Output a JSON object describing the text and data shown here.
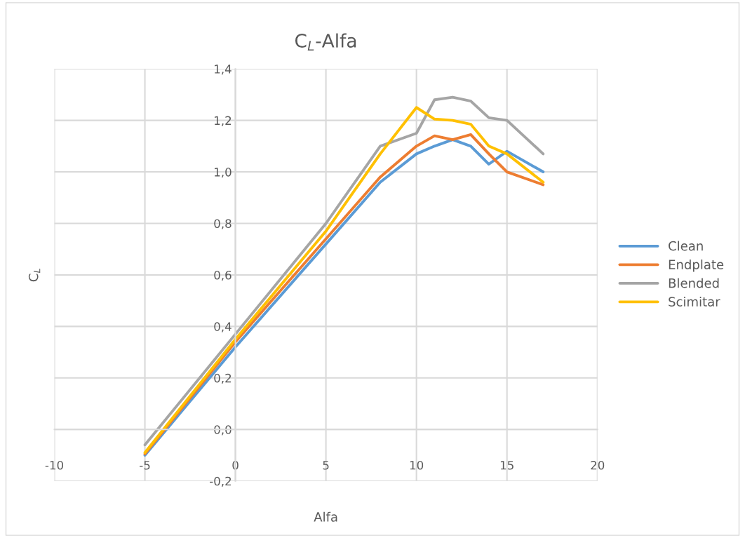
{
  "chart_data": {
    "type": "line",
    "title": "C$_{L}$-Alfa",
    "xlabel": "Alfa",
    "ylabel": "C$_{L}$",
    "x": [
      -5,
      0,
      5,
      8,
      10,
      11,
      12,
      13,
      14,
      15,
      17
    ],
    "series": [
      {
        "name": "Clean",
        "color": "#5b9bd5",
        "values": [
          -0.1,
          0.32,
          0.72,
          0.96,
          1.07,
          1.1,
          1.125,
          1.1,
          1.03,
          1.08,
          1.0
        ]
      },
      {
        "name": "Endplate",
        "color": "#ed7d31",
        "values": [
          -0.095,
          0.34,
          0.74,
          0.98,
          1.1,
          1.14,
          1.125,
          1.145,
          1.07,
          1.0,
          0.95
        ]
      },
      {
        "name": "Blended",
        "color": "#a5a5a5",
        "values": [
          -0.06,
          0.37,
          0.8,
          1.1,
          1.15,
          1.28,
          1.29,
          1.275,
          1.21,
          1.2,
          1.07
        ]
      },
      {
        "name": "Scimitar",
        "color": "#ffc000",
        "values": [
          -0.09,
          0.35,
          0.77,
          1.07,
          1.25,
          1.205,
          1.2,
          1.185,
          1.1,
          1.07,
          0.96
        ]
      }
    ],
    "xlim": [
      -10,
      20
    ],
    "xticks": [
      -10,
      -5,
      0,
      5,
      10,
      15,
      20
    ],
    "ylim": [
      -0.2,
      1.4
    ],
    "yticks": [
      {
        "value": -0.2,
        "label": "-0,2"
      },
      {
        "value": 0,
        "label": "0,0"
      },
      {
        "value": 0.2,
        "label": "0,2"
      },
      {
        "value": 0.4,
        "label": "0,4"
      },
      {
        "value": 0.6,
        "label": "0,6"
      },
      {
        "value": 0.8,
        "label": "0,8"
      },
      {
        "value": 1.0,
        "label": "1,0"
      },
      {
        "value": 1.2,
        "label": "1,2"
      },
      {
        "value": 1.4,
        "label": "1,4"
      }
    ],
    "grid": true,
    "legend": "right",
    "marker": "none",
    "line_style": "solid"
  }
}
